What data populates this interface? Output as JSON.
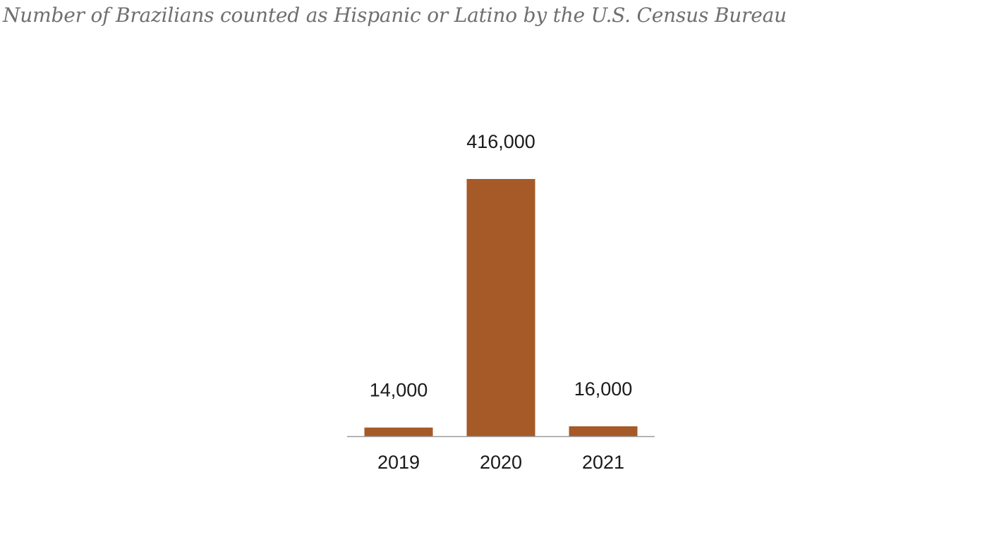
{
  "chart_data": {
    "type": "bar",
    "title": "Number of Brazilians counted as Hispanic or Latino by the U.S. Census Bureau",
    "categories": [
      "2019",
      "2020",
      "2021"
    ],
    "values": [
      14000,
      416000,
      16000
    ],
    "data_labels": [
      "14,000",
      "416,000",
      "16,000"
    ],
    "xlabel": "",
    "ylabel": "",
    "ylim": [
      0,
      416000
    ],
    "grid": false,
    "legend": "none",
    "colors": {
      "bar": "#a55a27",
      "baseline": "#9a9a9a",
      "title": "#6f6f6f",
      "text": "#1a1a1a"
    }
  }
}
